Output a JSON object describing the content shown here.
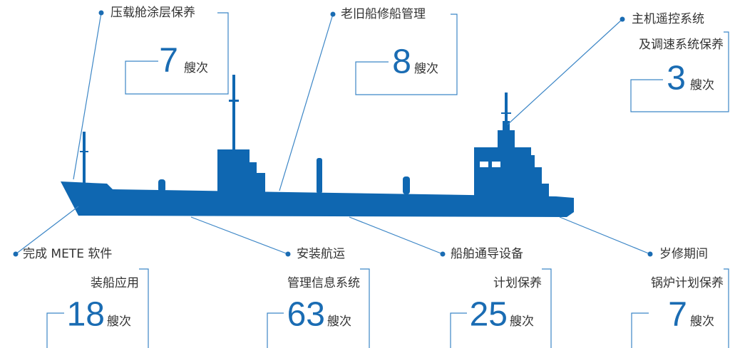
{
  "items": [
    {
      "label": [
        "压载舱涂层保养"
      ],
      "count": 7,
      "unit": "艘次"
    },
    {
      "label": [
        "老旧船修船管理"
      ],
      "count": 8,
      "unit": "艘次"
    },
    {
      "label": [
        "主机遥控系统",
        "及调速系统保养"
      ],
      "count": 3,
      "unit": "艘次"
    },
    {
      "label": [
        "完成 METE 软件",
        "装船应用"
      ],
      "count": 18,
      "unit": "艘次"
    },
    {
      "label": [
        "安装航运",
        "管理信息系统"
      ],
      "count": 63,
      "unit": "艘次"
    },
    {
      "label": [
        "船舶通导设备",
        "计划保养"
      ],
      "count": 25,
      "unit": "艘次"
    },
    {
      "label": [
        "岁修期间",
        "锅炉计划保养"
      ],
      "count": 7,
      "unit": "艘次"
    }
  ]
}
